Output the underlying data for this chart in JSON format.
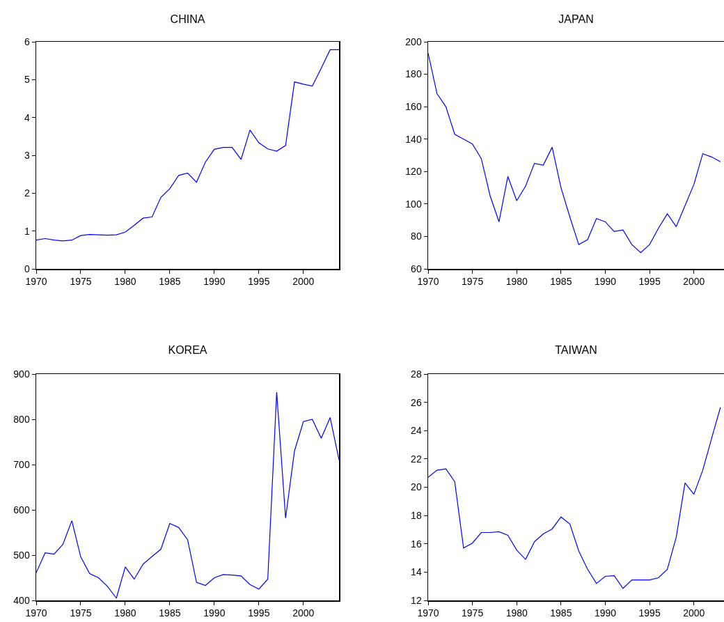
{
  "chart_data": [
    {
      "type": "line",
      "title": "CHINA",
      "color": "#0000ff",
      "x": [
        1970,
        1971,
        1972,
        1973,
        1974,
        1975,
        1976,
        1977,
        1978,
        1979,
        1980,
        1981,
        1982,
        1983,
        1984,
        1985,
        1986,
        1987,
        1988,
        1989,
        1990,
        1991,
        1992,
        1993,
        1994,
        1995,
        1996,
        1997,
        1998,
        1999,
        2000,
        2001,
        2002,
        2003,
        2004
      ],
      "values": [
        0.76,
        0.8,
        0.76,
        0.74,
        0.76,
        0.88,
        0.91,
        0.9,
        0.89,
        0.9,
        0.97,
        1.15,
        1.34,
        1.37,
        1.89,
        2.12,
        2.47,
        2.53,
        2.29,
        2.82,
        3.16,
        3.21,
        3.21,
        2.89,
        3.67,
        3.33,
        3.17,
        3.11,
        3.26,
        4.94,
        4.88,
        4.83,
        5.3,
        5.79,
        5.79
      ],
      "xlim": [
        1970,
        2004
      ],
      "xticks": [
        1970,
        1975,
        1980,
        1985,
        1990,
        1995,
        2000
      ],
      "ylim": [
        0,
        6
      ],
      "yticks": [
        0,
        1,
        2,
        3,
        4,
        5,
        6
      ]
    },
    {
      "type": "line",
      "title": "JAPAN",
      "color": "#0000ff",
      "x": [
        1970,
        1971,
        1972,
        1973,
        1974,
        1975,
        1976,
        1977,
        1978,
        1979,
        1980,
        1981,
        1982,
        1983,
        1984,
        1985,
        1986,
        1987,
        1988,
        1989,
        1990,
        1991,
        1992,
        1993,
        1994,
        1995,
        1996,
        1997,
        1998,
        1999,
        2000,
        2001,
        2002,
        2003
      ],
      "values": [
        193,
        168,
        160,
        143,
        140,
        137,
        128,
        105,
        89,
        117,
        102,
        111,
        125,
        124,
        135,
        110,
        92,
        75,
        78,
        91,
        89,
        83,
        84,
        75,
        70,
        75,
        85,
        94,
        86,
        99,
        112,
        131,
        129,
        126
      ],
      "xlim": [
        1970,
        2003.4
      ],
      "xticks": [
        1970,
        1975,
        1980,
        1985,
        1990,
        1995,
        2000
      ],
      "ylim": [
        60,
        200
      ],
      "yticks": [
        60,
        80,
        100,
        120,
        140,
        160,
        180,
        200
      ]
    },
    {
      "type": "line",
      "title": "KOREA",
      "color": "#0000ff",
      "x": [
        1970,
        1971,
        1972,
        1973,
        1974,
        1975,
        1976,
        1977,
        1978,
        1979,
        1980,
        1981,
        1982,
        1983,
        1984,
        1985,
        1986,
        1987,
        1988,
        1989,
        1990,
        1991,
        1992,
        1993,
        1994,
        1995,
        1996,
        1997,
        1998,
        1999,
        2000,
        2001,
        2002,
        2003,
        2004
      ],
      "values": [
        461,
        505,
        502,
        524,
        576,
        496,
        459,
        450,
        431,
        405,
        474,
        447,
        480,
        497,
        513,
        570,
        561,
        534,
        440,
        433,
        450,
        457,
        456,
        454,
        435,
        425,
        447,
        860,
        582,
        730,
        795,
        800,
        758,
        804,
        710
      ],
      "xlim": [
        1970,
        2004
      ],
      "xticks": [
        1970,
        1975,
        1980,
        1985,
        1990,
        1995,
        2000
      ],
      "ylim": [
        400,
        900
      ],
      "yticks": [
        400,
        500,
        600,
        700,
        800,
        900
      ]
    },
    {
      "type": "line",
      "title": "TAIWAN",
      "color": "#0000ff",
      "x": [
        1970,
        1971,
        1972,
        1973,
        1974,
        1975,
        1976,
        1977,
        1978,
        1979,
        1980,
        1981,
        1982,
        1983,
        1984,
        1985,
        1986,
        1987,
        1988,
        1989,
        1990,
        1991,
        1992,
        1993,
        1994,
        1995,
        1996,
        1997,
        1998,
        1999,
        2000,
        2001,
        2002,
        2003
      ],
      "values": [
        20.7,
        21.2,
        21.3,
        20.4,
        15.7,
        16.05,
        16.8,
        16.8,
        16.85,
        16.6,
        15.55,
        14.9,
        16.15,
        16.7,
        17.05,
        17.9,
        17.4,
        15.5,
        14.2,
        13.2,
        13.7,
        13.75,
        12.85,
        13.45,
        13.45,
        13.45,
        13.6,
        14.2,
        16.45,
        20.3,
        19.5,
        21.2,
        23.45,
        25.65
      ],
      "xlim": [
        1970,
        2003.4
      ],
      "xticks": [
        1970,
        1975,
        1980,
        1985,
        1990,
        1995,
        2000
      ],
      "ylim": [
        12,
        28
      ],
      "yticks": [
        12,
        14,
        16,
        18,
        20,
        22,
        24,
        26,
        28
      ]
    }
  ]
}
